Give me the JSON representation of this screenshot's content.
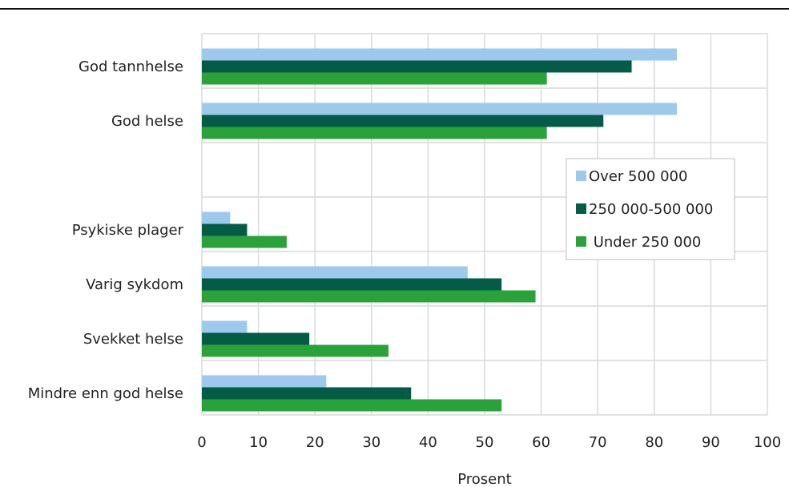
{
  "chart_data": {
    "type": "bar",
    "orientation": "horizontal",
    "title": "",
    "xlabel": "Prosent",
    "ylabel": "",
    "xlim": [
      0,
      100
    ],
    "xticks": [
      0,
      10,
      20,
      30,
      40,
      50,
      60,
      70,
      80,
      90,
      100
    ],
    "grid": true,
    "legend_position": "right",
    "categories": [
      "God tannhelse",
      "God helse",
      "",
      "Psykiske plager",
      "Varig sykdom",
      "Svekket helse",
      "Mindre enn god helse"
    ],
    "series": [
      {
        "name": "Over 500 000",
        "color": "#9dc9ec",
        "values": [
          84,
          84,
          null,
          5,
          47,
          8,
          22
        ]
      },
      {
        "name": "250 000-500 000",
        "color": "#055c46",
        "values": [
          76,
          71,
          null,
          8,
          53,
          19,
          37
        ]
      },
      {
        "name": "Under 250 000",
        "color": "#2aa23a",
        "values": [
          61,
          61,
          null,
          15,
          59,
          33,
          53
        ]
      }
    ],
    "legend_entries": [
      "Over 500 000",
      "250 000-500 000",
      " Under 250 000"
    ]
  }
}
